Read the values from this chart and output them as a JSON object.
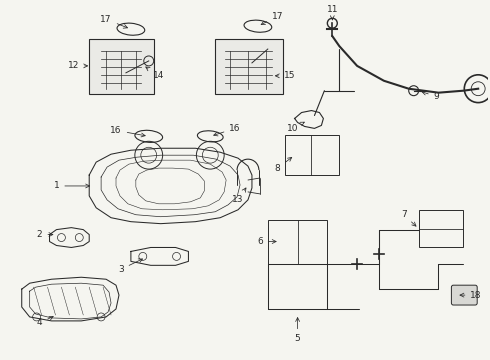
{
  "bg_color": "#f5f5f0",
  "line_color": "#2a2a2a",
  "label_color": "#111111",
  "figsize": [
    4.9,
    3.6
  ],
  "dpi": 100,
  "fs": 6.5,
  "lw": 0.75
}
